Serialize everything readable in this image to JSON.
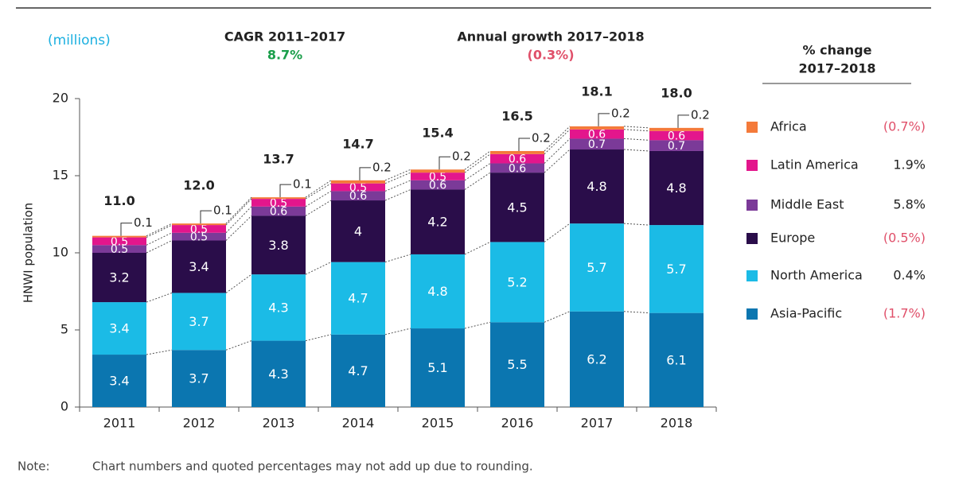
{
  "chart_data": {
    "type": "stacked_bar",
    "unit_label": "(millions)",
    "cagr_title": "CAGR 2011–2017",
    "cagr_value": "8.7%",
    "growth_title": "Annual growth 2017–2018",
    "growth_value": "(0.3%)",
    "legend_header": [
      "% change",
      "2017–2018"
    ],
    "y_label": "HNWI population",
    "categories": [
      "2011",
      "2012",
      "2013",
      "2014",
      "2015",
      "2016",
      "2017",
      "2018"
    ],
    "ylim": [
      0,
      20
    ],
    "yticks": [
      0,
      5,
      10,
      15,
      20
    ],
    "series": [
      {
        "name": "Asia-Pacific",
        "color": "#0b76b0",
        "values": [
          3.4,
          3.7,
          4.3,
          4.7,
          5.1,
          5.5,
          6.2,
          6.1
        ],
        "change": {
          "value": -1.7,
          "label": "(1.7%)"
        }
      },
      {
        "name": "North America",
        "color": "#1bbbe6",
        "values": [
          3.4,
          3.7,
          4.3,
          4.7,
          4.8,
          5.2,
          5.7,
          5.7
        ],
        "change": {
          "value": 0.4,
          "label": "0.4%"
        }
      },
      {
        "name": "Europe",
        "color": "#2a0d4a",
        "values": [
          3.2,
          3.4,
          3.8,
          4.0,
          4.2,
          4.5,
          4.8,
          4.8
        ],
        "change": {
          "value": -0.5,
          "label": "(0.5%)"
        }
      },
      {
        "name": "Middle East",
        "color": "#7b3a98",
        "values": [
          0.5,
          0.5,
          0.6,
          0.6,
          0.6,
          0.6,
          0.7,
          0.7
        ],
        "change": {
          "value": 5.8,
          "label": "5.8%"
        }
      },
      {
        "name": "Latin America",
        "color": "#e3168c",
        "values": [
          0.5,
          0.5,
          0.5,
          0.5,
          0.5,
          0.6,
          0.6,
          0.6
        ],
        "change": {
          "value": 1.9,
          "label": "1.9%"
        }
      },
      {
        "name": "Africa",
        "color": "#f47a3a",
        "values": [
          0.1,
          0.1,
          0.1,
          0.2,
          0.2,
          0.2,
          0.2,
          0.2
        ],
        "change": {
          "value": -0.7,
          "label": "(0.7%)"
        }
      }
    ],
    "totals": {
      "values": [
        11,
        12,
        13.7,
        14.7,
        15.4,
        16.5,
        18.1,
        18
      ],
      "value_labels": [
        "11.0",
        "12.0",
        "13.7",
        "14.7",
        "15.4",
        "16.5",
        "18.1",
        "18.0"
      ]
    },
    "note_label": "Note:",
    "note": "Chart numbers and quoted percentages may not add up due to rounding."
  }
}
